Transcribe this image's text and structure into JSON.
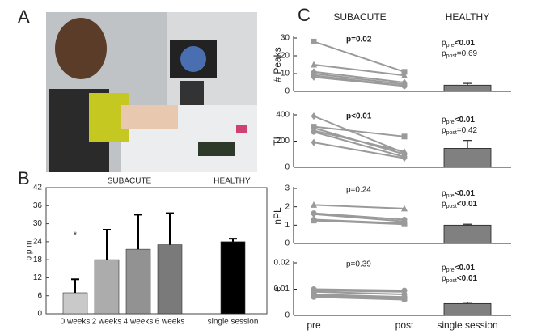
{
  "panel_a": {
    "label": "A"
  },
  "chart_data": [
    {
      "type": "bar",
      "panel_label": "B",
      "ylabel": "b p m",
      "group_labels": [
        "SUBACUTE",
        "HEALTHY"
      ],
      "annotations": [
        "*"
      ],
      "categories": [
        "0 weeks",
        "2 weeks",
        "4 weeks",
        "6 weeks",
        "single session"
      ],
      "values": [
        7,
        18,
        21.5,
        23,
        24
      ],
      "errors": [
        4.5,
        10,
        11.5,
        10.5,
        1
      ],
      "colors": [
        "#c9c9c9",
        "#acacac",
        "#929292",
        "#7a7a7a",
        "#000000"
      ],
      "ylim": [
        0,
        42
      ],
      "yticks": [
        0,
        6,
        12,
        18,
        24,
        30,
        36,
        42
      ]
    },
    {
      "type": "paired",
      "panel_label": "C",
      "column_titles": [
        "SUBACUTE",
        "HEALTHY"
      ],
      "categories": [
        "pre",
        "post",
        "single session"
      ],
      "line_color": "#9a9a9a",
      "bar_color": "#808080",
      "panels": [
        {
          "ylabel": "# Peaks",
          "ylim": [
            0,
            30
          ],
          "yticks": [
            0,
            10,
            20,
            30
          ],
          "p_label": "p=0.02",
          "p_bold": true,
          "p_pre": {
            "symbol": "p",
            "subscript": "pre",
            "value": "<0.01",
            "bold": true
          },
          "p_post": {
            "symbol": "p",
            "subscript": "post",
            "value": "=0.69",
            "bold": false
          },
          "series": [
            {
              "marker": "square",
              "values": [
                28,
                11
              ]
            },
            {
              "marker": "triangle",
              "values": [
                15,
                9
              ]
            },
            {
              "marker": "diamond",
              "values": [
                11,
                5
              ]
            },
            {
              "marker": "circle",
              "values": [
                10,
                4
              ]
            },
            {
              "marker": "circle",
              "values": [
                9,
                3
              ]
            },
            {
              "marker": "diamond",
              "values": [
                8,
                3
              ]
            }
          ],
          "healthy": {
            "value": 3.5,
            "error": 1
          }
        },
        {
          "ylabel": "TI",
          "ylim": [
            0,
            400
          ],
          "yticks": [
            0,
            200,
            400
          ],
          "p_label": "p<0.01",
          "p_bold": true,
          "p_pre": {
            "symbol": "p",
            "subscript": "pre",
            "value": "<0.01",
            "bold": true
          },
          "p_post": {
            "symbol": "p",
            "subscript": "post",
            "value": "=0.42",
            "bold": false
          },
          "series": [
            {
              "marker": "diamond",
              "values": [
                390,
                110
              ]
            },
            {
              "marker": "square",
              "values": [
                310,
                235
              ]
            },
            {
              "marker": "circle",
              "values": [
                300,
                100
              ]
            },
            {
              "marker": "triangle",
              "values": [
                280,
                120
              ]
            },
            {
              "marker": "circle",
              "values": [
                270,
                80
              ]
            },
            {
              "marker": "diamond",
              "values": [
                190,
                70
              ]
            }
          ],
          "healthy": {
            "value": 145,
            "error": 60
          }
        },
        {
          "ylabel": "nPL",
          "ylim": [
            0,
            3
          ],
          "yticks": [
            0,
            1,
            2,
            3
          ],
          "p_label": "p=0.24",
          "p_bold": false,
          "p_pre": {
            "symbol": "p",
            "subscript": "pre",
            "value": "<0.01",
            "bold": true
          },
          "p_post": {
            "symbol": "p",
            "subscript": "post",
            "value": "<0.01",
            "bold": true
          },
          "series": [
            {
              "marker": "triangle",
              "values": [
                2.1,
                1.9
              ]
            },
            {
              "marker": "circle",
              "values": [
                1.65,
                1.3
              ]
            },
            {
              "marker": "diamond",
              "values": [
                1.6,
                1.2
              ]
            },
            {
              "marker": "circle",
              "values": [
                1.3,
                1.1
              ]
            },
            {
              "marker": "square",
              "values": [
                1.25,
                1.05
              ]
            }
          ],
          "healthy": {
            "value": 1.0,
            "error": 0.05
          }
        },
        {
          "ylabel": "e",
          "ylim": [
            0,
            0.02
          ],
          "yticks": [
            0,
            0.01,
            0.02
          ],
          "p_label": "p=0.39",
          "p_bold": false,
          "p_pre": {
            "symbol": "p",
            "subscript": "pre",
            "value": "<0.01",
            "bold": true
          },
          "p_post": {
            "symbol": "p",
            "subscript": "post",
            "value": "<0.01",
            "bold": true
          },
          "series": [
            {
              "marker": "circle",
              "values": [
                0.01,
                0.0095
              ]
            },
            {
              "marker": "triangle",
              "values": [
                0.0095,
                0.009
              ]
            },
            {
              "marker": "diamond",
              "values": [
                0.009,
                0.008
              ]
            },
            {
              "marker": "circle",
              "values": [
                0.008,
                0.007
              ]
            },
            {
              "marker": "square",
              "values": [
                0.0075,
                0.0065
              ]
            },
            {
              "marker": "circle",
              "values": [
                0.007,
                0.006
              ]
            }
          ],
          "healthy": {
            "value": 0.0045,
            "error": 0.0005
          }
        }
      ]
    }
  ]
}
